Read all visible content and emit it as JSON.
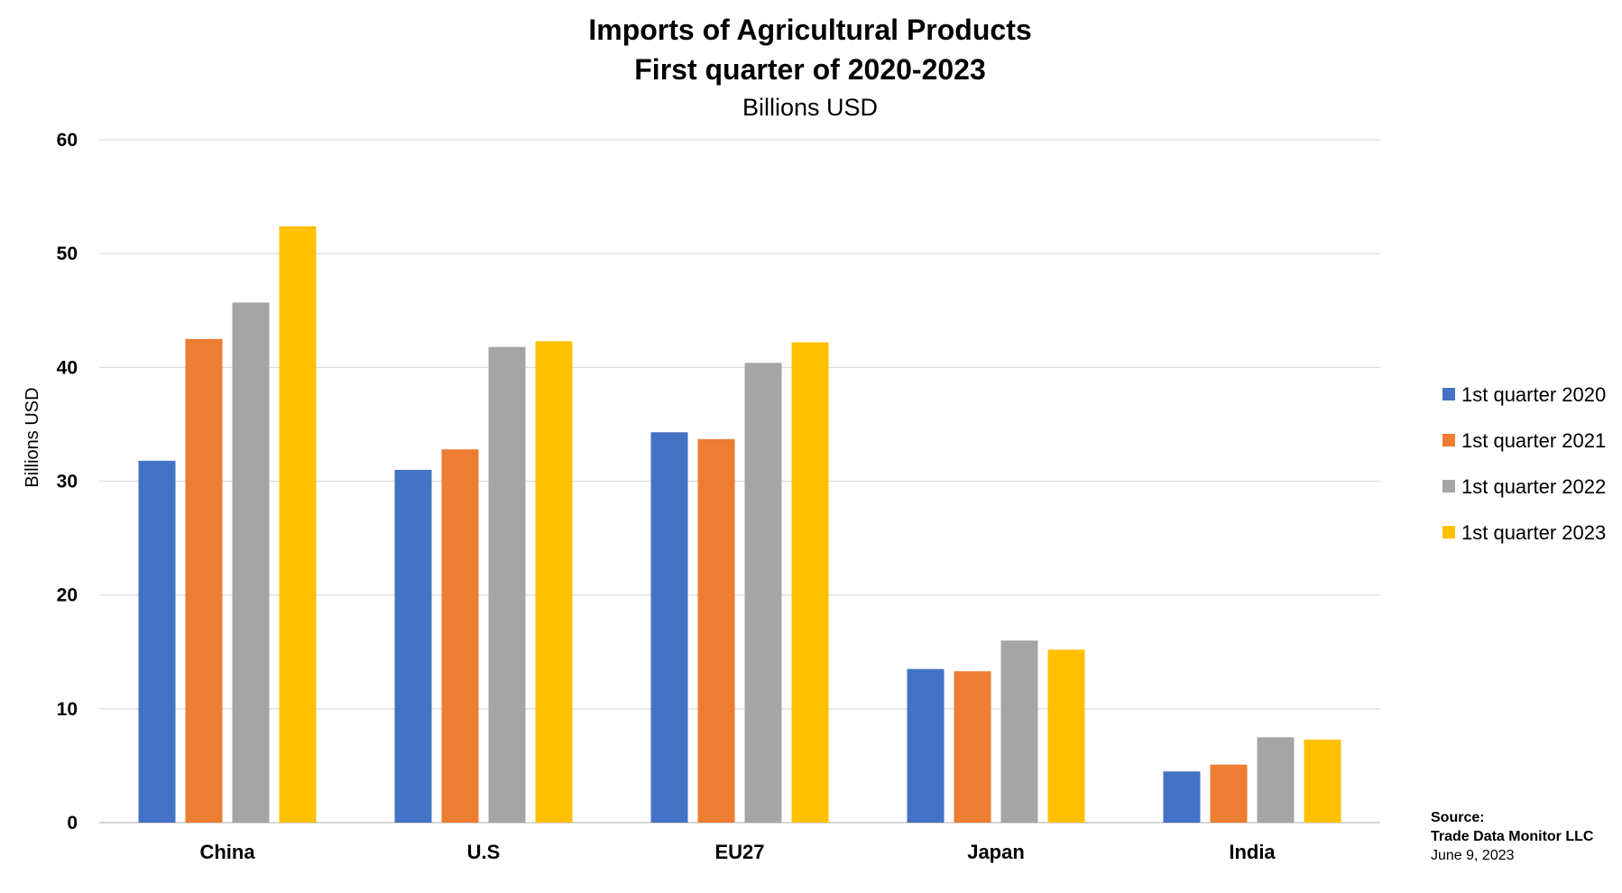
{
  "chart_data": {
    "type": "bar",
    "title_lines": [
      "Imports of Agricultural Products",
      "First quarter of 2020-2023"
    ],
    "subtitle": "Billions USD",
    "ylabel": "Billions USD",
    "xlabel": "",
    "ylim": [
      0,
      60
    ],
    "yticks": [
      0,
      10,
      20,
      30,
      40,
      50,
      60
    ],
    "grid": true,
    "legend_position": "right",
    "categories": [
      "China",
      "U.S",
      "EU27",
      "Japan",
      "India"
    ],
    "series": [
      {
        "name": "1st quarter 2020",
        "color": "#4472C4",
        "values": [
          31.8,
          31.0,
          34.3,
          13.5,
          4.5
        ]
      },
      {
        "name": "1st quarter 2021",
        "color": "#ED7D31",
        "values": [
          42.5,
          32.8,
          33.7,
          13.3,
          5.1
        ]
      },
      {
        "name": "1st quarter 2022",
        "color": "#A5A5A5",
        "values": [
          45.7,
          41.8,
          40.4,
          16.0,
          7.5
        ]
      },
      {
        "name": "1st quarter 2023",
        "color": "#FFC000",
        "values": [
          52.4,
          42.3,
          42.2,
          15.2,
          7.3
        ]
      }
    ]
  },
  "source": {
    "label": "Source:",
    "org": "Trade Data Monitor LLC",
    "date": "June 9, 2023"
  }
}
